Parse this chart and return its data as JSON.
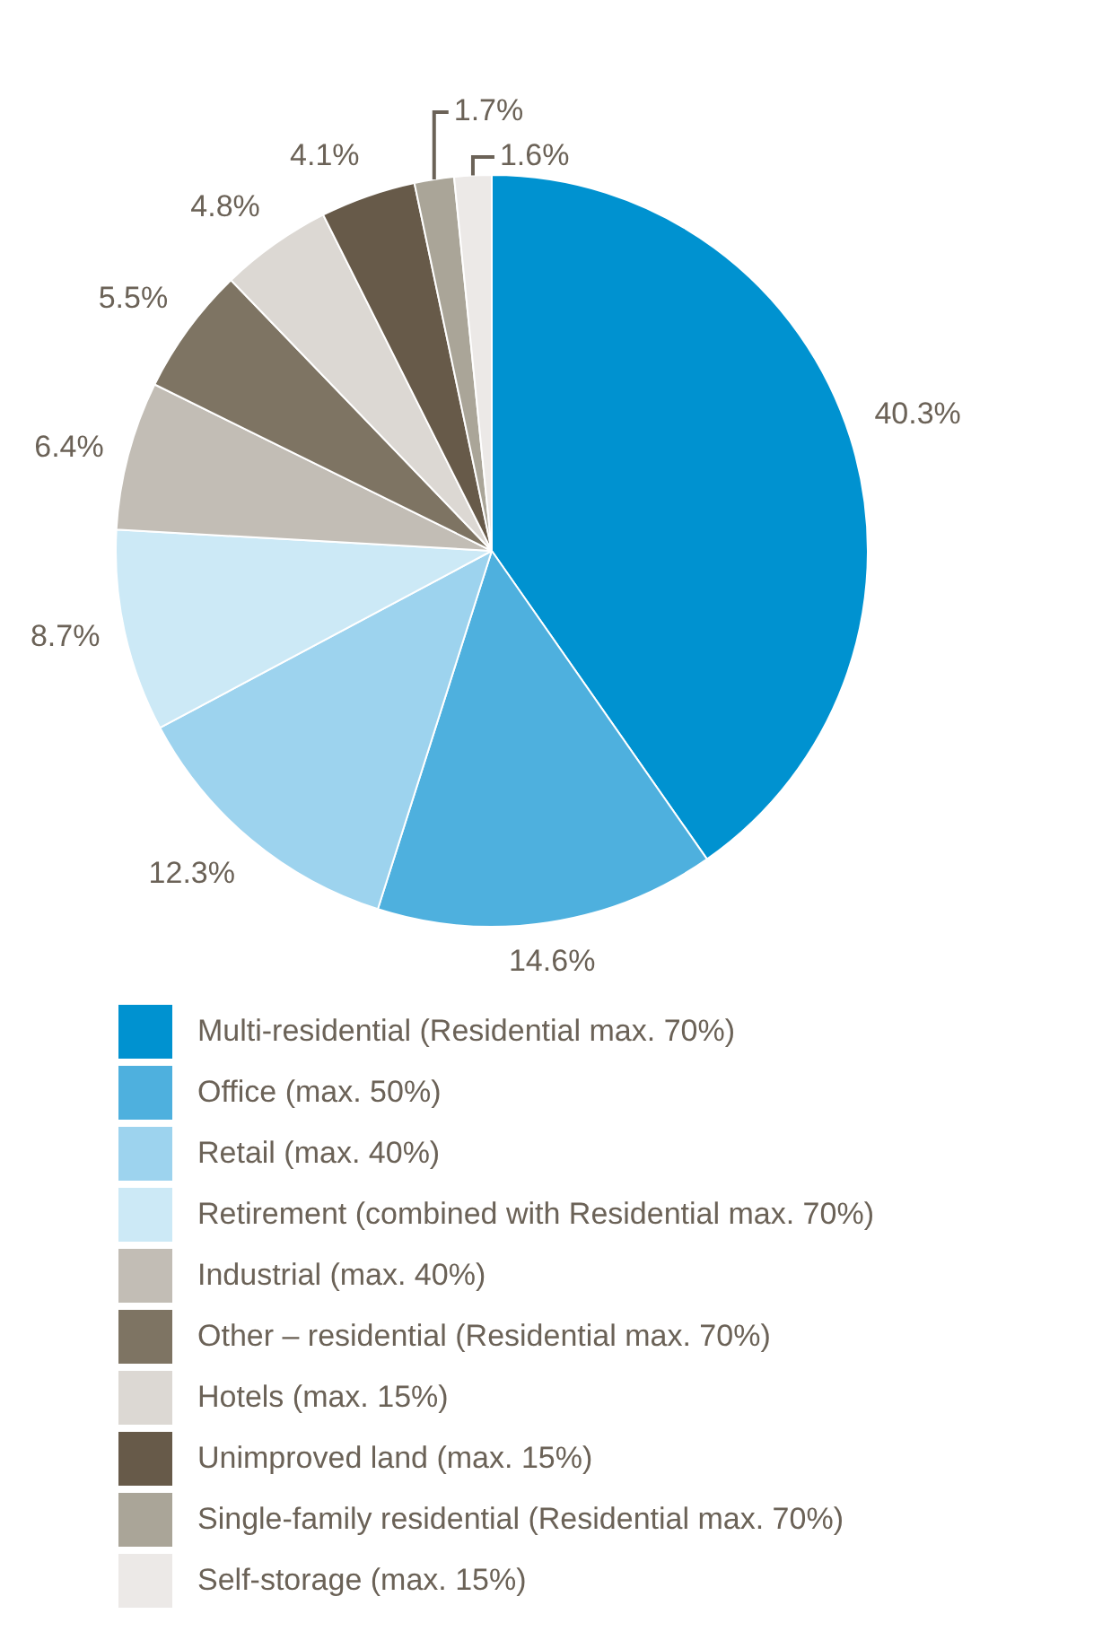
{
  "chart_data": {
    "type": "pie",
    "categories": [
      "Multi-residential (Residential max. 70%)",
      "Office (max. 50%)",
      "Retail (max. 40%)",
      "Retirement (combined with Residential max. 70%)",
      "Industrial (max. 40%)",
      "Other – residential (Residential max. 70%)",
      "Hotels (max. 15%)",
      "Unimproved land (max. 15%)",
      "Single-family residential (Residential max. 70%)",
      "Self-storage (max. 15%)"
    ],
    "values": [
      40.3,
      14.6,
      12.3,
      8.7,
      6.4,
      5.5,
      4.8,
      4.1,
      1.7,
      1.6
    ],
    "value_labels": [
      "40.3%",
      "14.6%",
      "12.3%",
      "8.7%",
      "6.4%",
      "5.5%",
      "4.8%",
      "4.1%",
      "1.7%",
      "1.6%"
    ],
    "colors": [
      "#0092d0",
      "#4eb0de",
      "#9dd3ee",
      "#cce9f6",
      "#c2bdb5",
      "#7e7463",
      "#dcd8d3",
      "#675a49",
      "#aaa598",
      "#ece9e7"
    ],
    "legend": "bottom"
  }
}
